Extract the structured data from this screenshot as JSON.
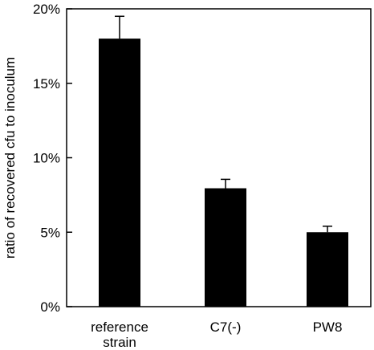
{
  "chart_data": {
    "type": "bar",
    "title": "",
    "xlabel": "",
    "ylabel": "ratio of recovered cfu to inoculum",
    "categories": [
      [
        "reference",
        "strain"
      ],
      [
        "C7(-)"
      ],
      [
        "PW8"
      ]
    ],
    "values": [
      18.0,
      7.95,
      5.0
    ],
    "errors": [
      1.5,
      0.6,
      0.4
    ],
    "ylim": [
      0,
      20
    ],
    "yticks": [
      0,
      5,
      10,
      15,
      20
    ],
    "ytick_labels": [
      "0%",
      "5%",
      "10%",
      "15%",
      "20%"
    ],
    "grid": false,
    "legend": "none",
    "colors": {
      "bar": "#000000",
      "axis": "#000000",
      "background": "#ffffff"
    }
  }
}
